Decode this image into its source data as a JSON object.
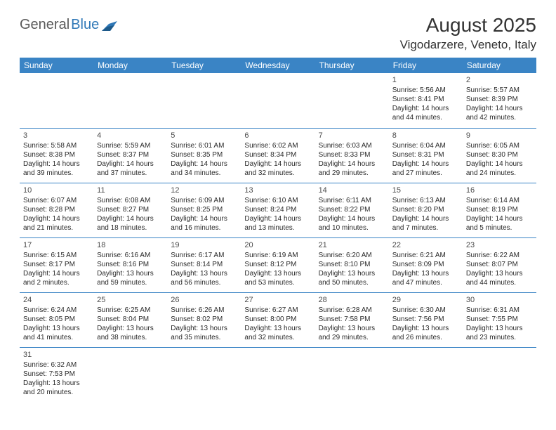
{
  "logo": {
    "text1": "General",
    "text2": "Blue"
  },
  "title": "August 2025",
  "location": "Vigodarzere, Veneto, Italy",
  "colors": {
    "header_bg": "#3a84c5",
    "header_fg": "#ffffff",
    "row_border": "#3a84c5",
    "logo_gray": "#5a5a5a",
    "logo_blue": "#2f78b7"
  },
  "weekdays": [
    "Sunday",
    "Monday",
    "Tuesday",
    "Wednesday",
    "Thursday",
    "Friday",
    "Saturday"
  ],
  "weeks": [
    [
      null,
      null,
      null,
      null,
      null,
      {
        "d": "1",
        "r": "Sunrise: 5:56 AM",
        "s": "Sunset: 8:41 PM",
        "l1": "Daylight: 14 hours",
        "l2": "and 44 minutes."
      },
      {
        "d": "2",
        "r": "Sunrise: 5:57 AM",
        "s": "Sunset: 8:39 PM",
        "l1": "Daylight: 14 hours",
        "l2": "and 42 minutes."
      }
    ],
    [
      {
        "d": "3",
        "r": "Sunrise: 5:58 AM",
        "s": "Sunset: 8:38 PM",
        "l1": "Daylight: 14 hours",
        "l2": "and 39 minutes."
      },
      {
        "d": "4",
        "r": "Sunrise: 5:59 AM",
        "s": "Sunset: 8:37 PM",
        "l1": "Daylight: 14 hours",
        "l2": "and 37 minutes."
      },
      {
        "d": "5",
        "r": "Sunrise: 6:01 AM",
        "s": "Sunset: 8:35 PM",
        "l1": "Daylight: 14 hours",
        "l2": "and 34 minutes."
      },
      {
        "d": "6",
        "r": "Sunrise: 6:02 AM",
        "s": "Sunset: 8:34 PM",
        "l1": "Daylight: 14 hours",
        "l2": "and 32 minutes."
      },
      {
        "d": "7",
        "r": "Sunrise: 6:03 AM",
        "s": "Sunset: 8:33 PM",
        "l1": "Daylight: 14 hours",
        "l2": "and 29 minutes."
      },
      {
        "d": "8",
        "r": "Sunrise: 6:04 AM",
        "s": "Sunset: 8:31 PM",
        "l1": "Daylight: 14 hours",
        "l2": "and 27 minutes."
      },
      {
        "d": "9",
        "r": "Sunrise: 6:05 AM",
        "s": "Sunset: 8:30 PM",
        "l1": "Daylight: 14 hours",
        "l2": "and 24 minutes."
      }
    ],
    [
      {
        "d": "10",
        "r": "Sunrise: 6:07 AM",
        "s": "Sunset: 8:28 PM",
        "l1": "Daylight: 14 hours",
        "l2": "and 21 minutes."
      },
      {
        "d": "11",
        "r": "Sunrise: 6:08 AM",
        "s": "Sunset: 8:27 PM",
        "l1": "Daylight: 14 hours",
        "l2": "and 18 minutes."
      },
      {
        "d": "12",
        "r": "Sunrise: 6:09 AM",
        "s": "Sunset: 8:25 PM",
        "l1": "Daylight: 14 hours",
        "l2": "and 16 minutes."
      },
      {
        "d": "13",
        "r": "Sunrise: 6:10 AM",
        "s": "Sunset: 8:24 PM",
        "l1": "Daylight: 14 hours",
        "l2": "and 13 minutes."
      },
      {
        "d": "14",
        "r": "Sunrise: 6:11 AM",
        "s": "Sunset: 8:22 PM",
        "l1": "Daylight: 14 hours",
        "l2": "and 10 minutes."
      },
      {
        "d": "15",
        "r": "Sunrise: 6:13 AM",
        "s": "Sunset: 8:20 PM",
        "l1": "Daylight: 14 hours",
        "l2": "and 7 minutes."
      },
      {
        "d": "16",
        "r": "Sunrise: 6:14 AM",
        "s": "Sunset: 8:19 PM",
        "l1": "Daylight: 14 hours",
        "l2": "and 5 minutes."
      }
    ],
    [
      {
        "d": "17",
        "r": "Sunrise: 6:15 AM",
        "s": "Sunset: 8:17 PM",
        "l1": "Daylight: 14 hours",
        "l2": "and 2 minutes."
      },
      {
        "d": "18",
        "r": "Sunrise: 6:16 AM",
        "s": "Sunset: 8:16 PM",
        "l1": "Daylight: 13 hours",
        "l2": "and 59 minutes."
      },
      {
        "d": "19",
        "r": "Sunrise: 6:17 AM",
        "s": "Sunset: 8:14 PM",
        "l1": "Daylight: 13 hours",
        "l2": "and 56 minutes."
      },
      {
        "d": "20",
        "r": "Sunrise: 6:19 AM",
        "s": "Sunset: 8:12 PM",
        "l1": "Daylight: 13 hours",
        "l2": "and 53 minutes."
      },
      {
        "d": "21",
        "r": "Sunrise: 6:20 AM",
        "s": "Sunset: 8:10 PM",
        "l1": "Daylight: 13 hours",
        "l2": "and 50 minutes."
      },
      {
        "d": "22",
        "r": "Sunrise: 6:21 AM",
        "s": "Sunset: 8:09 PM",
        "l1": "Daylight: 13 hours",
        "l2": "and 47 minutes."
      },
      {
        "d": "23",
        "r": "Sunrise: 6:22 AM",
        "s": "Sunset: 8:07 PM",
        "l1": "Daylight: 13 hours",
        "l2": "and 44 minutes."
      }
    ],
    [
      {
        "d": "24",
        "r": "Sunrise: 6:24 AM",
        "s": "Sunset: 8:05 PM",
        "l1": "Daylight: 13 hours",
        "l2": "and 41 minutes."
      },
      {
        "d": "25",
        "r": "Sunrise: 6:25 AM",
        "s": "Sunset: 8:04 PM",
        "l1": "Daylight: 13 hours",
        "l2": "and 38 minutes."
      },
      {
        "d": "26",
        "r": "Sunrise: 6:26 AM",
        "s": "Sunset: 8:02 PM",
        "l1": "Daylight: 13 hours",
        "l2": "and 35 minutes."
      },
      {
        "d": "27",
        "r": "Sunrise: 6:27 AM",
        "s": "Sunset: 8:00 PM",
        "l1": "Daylight: 13 hours",
        "l2": "and 32 minutes."
      },
      {
        "d": "28",
        "r": "Sunrise: 6:28 AM",
        "s": "Sunset: 7:58 PM",
        "l1": "Daylight: 13 hours",
        "l2": "and 29 minutes."
      },
      {
        "d": "29",
        "r": "Sunrise: 6:30 AM",
        "s": "Sunset: 7:56 PM",
        "l1": "Daylight: 13 hours",
        "l2": "and 26 minutes."
      },
      {
        "d": "30",
        "r": "Sunrise: 6:31 AM",
        "s": "Sunset: 7:55 PM",
        "l1": "Daylight: 13 hours",
        "l2": "and 23 minutes."
      }
    ],
    [
      {
        "d": "31",
        "r": "Sunrise: 6:32 AM",
        "s": "Sunset: 7:53 PM",
        "l1": "Daylight: 13 hours",
        "l2": "and 20 minutes."
      },
      null,
      null,
      null,
      null,
      null,
      null
    ]
  ]
}
